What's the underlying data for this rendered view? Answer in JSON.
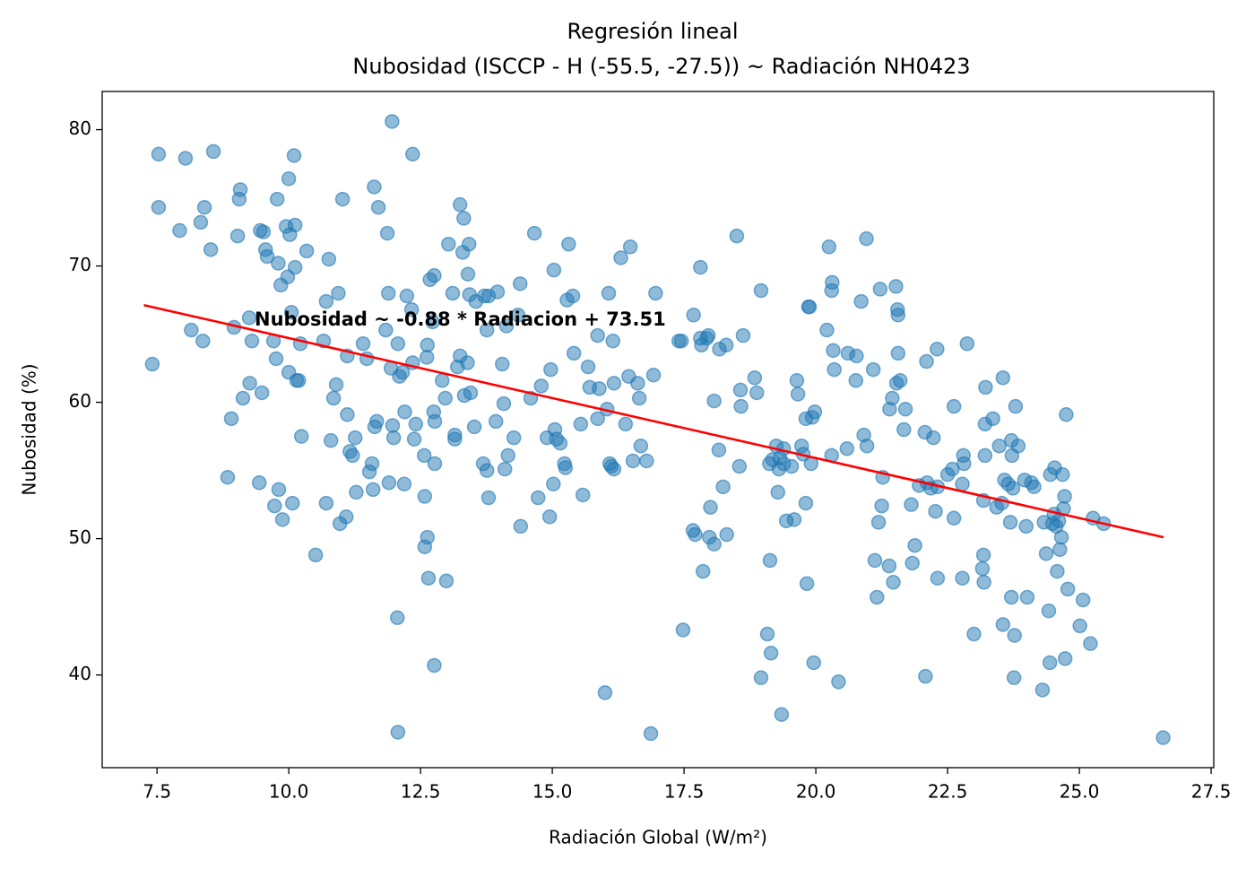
{
  "chart_data": {
    "type": "scatter",
    "title": "Regresión lineal",
    "subtitle": "Nubosidad (ISCCP - H (-55.5, -27.5)) ~ Radiación NH0423",
    "x_label": "Radiación Global (W/m²)",
    "y_label": "Nubosidad (%)",
    "annotation": "Nubosidad ~ -0.88 * Radiacion + 73.51",
    "color": "#1f77b4",
    "xlim": [
      6.46,
      27.55
    ],
    "ylim": [
      33.2,
      82.8
    ],
    "xticks": [
      7.5,
      {
        "value": 10,
        "label": "10.0"
      },
      12.5,
      {
        "value": 15,
        "label": "15.0"
      },
      17.5,
      {
        "value": 20,
        "label": "20.0"
      },
      22.5,
      {
        "value": 25,
        "label": "25.0"
      },
      27.5
    ],
    "yticks": [
      40,
      50,
      60,
      70,
      80
    ],
    "x": [
      7.41,
      7.53,
      7.53,
      8.04,
      7.93,
      8.15,
      8.33,
      8.4,
      8.37,
      8.52,
      8.57,
      8.84,
      8.91,
      8.96,
      9.03,
      9.06,
      9.08,
      9.13,
      9.25,
      9.26,
      9.3,
      9.44,
      9.46,
      9.49,
      9.52,
      9.56,
      9.59,
      9.71,
      9.73,
      9.76,
      9.78,
      9.8,
      9.81,
      9.85,
      9.88,
      9.95,
      9.98,
      10.0,
      10.0,
      10.02,
      10.05,
      10.07,
      10.1,
      10.12,
      10.12,
      10.15,
      10.19,
      10.22,
      10.24,
      10.34,
      10.51,
      10.66,
      10.71,
      10.71,
      10.76,
      10.8,
      10.85,
      10.9,
      10.94,
      10.97,
      11.02,
      11.09,
      11.11,
      11.11,
      11.16,
      11.21,
      11.26,
      11.28,
      11.41,
      11.48,
      11.53,
      11.58,
      11.6,
      11.62,
      11.63,
      11.67,
      11.7,
      11.84,
      11.87,
      11.89,
      11.9,
      11.94,
      11.96,
      11.97,
      11.99,
      12.06,
      12.07,
      12.07,
      12.1,
      12.16,
      12.19,
      12.2,
      12.24,
      12.33,
      12.35,
      12.35,
      12.38,
      12.41,
      12.57,
      12.58,
      12.58,
      12.62,
      12.63,
      12.63,
      12.65,
      12.68,
      12.73,
      12.75,
      12.76,
      12.77,
      12.77,
      12.76,
      12.91,
      12.97,
      12.99,
      13.03,
      13.11,
      13.15,
      13.15,
      13.2,
      13.25,
      13.25,
      13.3,
      13.32,
      13.33,
      13.39,
      13.4,
      13.42,
      13.43,
      13.45,
      13.52,
      13.55,
      13.69,
      13.71,
      13.76,
      13.76,
      13.79,
      13.79,
      13.93,
      13.96,
      14.05,
      14.08,
      14.1,
      14.13,
      14.16,
      14.27,
      14.35,
      14.4,
      14.39,
      14.59,
      14.66,
      14.73,
      14.79,
      14.9,
      14.95,
      14.97,
      15.02,
      15.03,
      15.05,
      15.08,
      15.15,
      15.23,
      15.25,
      15.28,
      15.31,
      15.39,
      15.41,
      15.54,
      15.58,
      15.68,
      15.71,
      15.86,
      15.86,
      15.89,
      16.0,
      16.04,
      16.07,
      16.09,
      16.12,
      16.15,
      16.17,
      16.17,
      16.3,
      16.39,
      16.45,
      16.48,
      16.53,
      16.62,
      16.65,
      16.68,
      16.79,
      16.87,
      16.92,
      16.96,
      17.4,
      17.45,
      17.48,
      17.67,
      17.68,
      17.71,
      17.81,
      17.81,
      17.83,
      17.86,
      17.93,
      17.96,
      17.98,
      18.0,
      18.07,
      18.07,
      18.16,
      18.17,
      18.24,
      18.31,
      18.3,
      18.5,
      18.55,
      18.57,
      18.58,
      18.62,
      18.84,
      18.88,
      18.96,
      18.96,
      19.08,
      19.12,
      19.13,
      19.15,
      19.18,
      19.25,
      19.28,
      19.3,
      19.32,
      19.35,
      19.39,
      19.39,
      19.44,
      19.54,
      19.59,
      19.64,
      19.66,
      19.73,
      19.76,
      19.81,
      19.81,
      19.83,
      19.86,
      19.88,
      19.91,
      19.93,
      19.96,
      19.98,
      20.21,
      20.25,
      20.3,
      20.3,
      20.31,
      20.33,
      20.35,
      20.43,
      20.59,
      20.61,
      20.76,
      20.77,
      20.86,
      20.91,
      20.96,
      20.97,
      21.09,
      21.12,
      21.16,
      21.19,
      21.22,
      21.25,
      21.27,
      21.39,
      21.4,
      21.45,
      21.47,
      21.52,
      21.53,
      21.55,
      21.56,
      21.56,
      21.6,
      21.7,
      21.67,
      21.81,
      21.83,
      21.88,
      21.96,
      22.07,
      22.08,
      22.1,
      22.11,
      22.18,
      22.23,
      22.27,
      22.3,
      22.31,
      22.31,
      22.5,
      22.59,
      22.62,
      22.62,
      22.78,
      22.78,
      22.8,
      22.81,
      22.87,
      23.0,
      23.18,
      23.18,
      23.16,
      23.19,
      23.21,
      23.21,
      23.22,
      23.36,
      23.43,
      23.48,
      23.53,
      23.55,
      23.55,
      23.58,
      23.65,
      23.69,
      23.71,
      23.71,
      23.72,
      23.74,
      23.76,
      23.77,
      23.79,
      23.84,
      23.96,
      23.99,
      24.01,
      24.09,
      24.14,
      24.3,
      24.33,
      24.37,
      24.42,
      24.44,
      24.45,
      24.49,
      24.52,
      24.53,
      24.56,
      24.58,
      24.61,
      24.63,
      24.66,
      24.68,
      24.7,
      24.72,
      24.73,
      24.75,
      24.78,
      25.01,
      25.07,
      25.21,
      25.26,
      25.46,
      26.59
    ],
    "values": [
      62.8,
      78.2,
      74.3,
      77.9,
      72.6,
      65.3,
      73.2,
      74.3,
      64.5,
      71.2,
      78.4,
      54.5,
      58.8,
      65.5,
      72.2,
      74.9,
      75.6,
      60.3,
      66.2,
      61.4,
      64.5,
      54.1,
      72.6,
      60.7,
      72.5,
      71.2,
      70.7,
      64.5,
      52.4,
      63.2,
      74.9,
      70.2,
      53.6,
      68.6,
      51.4,
      72.9,
      69.2,
      62.2,
      76.4,
      72.3,
      66.6,
      52.6,
      78.1,
      69.9,
      73.0,
      61.6,
      61.6,
      64.3,
      57.5,
      71.1,
      48.8,
      64.5,
      52.6,
      67.4,
      70.5,
      57.2,
      60.3,
      61.3,
      68.0,
      51.1,
      74.9,
      51.6,
      63.4,
      59.1,
      56.4,
      56.1,
      57.4,
      53.4,
      64.3,
      63.2,
      54.9,
      55.5,
      53.6,
      75.8,
      58.2,
      58.6,
      74.3,
      65.3,
      72.4,
      68.0,
      54.1,
      62.5,
      80.6,
      58.3,
      57.4,
      44.2,
      35.8,
      64.3,
      61.9,
      62.2,
      54.0,
      59.3,
      67.8,
      66.8,
      78.2,
      62.9,
      57.3,
      58.4,
      56.1,
      53.1,
      49.4,
      63.3,
      50.1,
      64.2,
      47.1,
      69.0,
      65.9,
      59.3,
      69.3,
      58.6,
      55.5,
      40.7,
      61.6,
      60.3,
      46.9,
      71.6,
      68.0,
      57.3,
      57.6,
      62.6,
      74.5,
      63.4,
      71.0,
      73.5,
      60.5,
      62.9,
      69.4,
      71.6,
      67.9,
      60.7,
      58.2,
      67.4,
      55.5,
      67.8,
      55.0,
      65.3,
      53.0,
      67.8,
      58.6,
      68.1,
      62.8,
      59.9,
      55.1,
      65.6,
      56.1,
      57.4,
      66.4,
      50.9,
      68.7,
      60.3,
      72.4,
      53.0,
      61.2,
      57.4,
      51.6,
      62.4,
      54.0,
      69.7,
      58.0,
      57.3,
      57.0,
      55.5,
      55.2,
      67.5,
      71.6,
      67.8,
      63.6,
      58.4,
      53.2,
      62.6,
      61.1,
      64.9,
      58.8,
      61.0,
      38.7,
      59.5,
      68.0,
      55.5,
      55.3,
      64.5,
      55.1,
      61.4,
      70.6,
      58.4,
      61.9,
      71.4,
      55.7,
      61.4,
      60.3,
      56.8,
      55.7,
      35.7,
      62.0,
      68.0,
      64.5,
      64.5,
      43.3,
      50.6,
      66.4,
      50.3,
      69.9,
      64.7,
      64.2,
      47.6,
      64.7,
      64.9,
      50.1,
      52.3,
      49.6,
      60.1,
      56.5,
      63.9,
      53.8,
      50.3,
      64.2,
      72.2,
      55.3,
      60.9,
      59.7,
      64.9,
      61.8,
      60.7,
      68.2,
      39.8,
      43.0,
      55.5,
      48.4,
      41.6,
      55.8,
      56.8,
      53.4,
      55.1,
      55.9,
      37.1,
      56.6,
      55.5,
      51.3,
      55.3,
      51.4,
      61.6,
      60.6,
      56.8,
      56.2,
      58.8,
      52.6,
      46.7,
      67.0,
      67.0,
      55.5,
      58.9,
      40.9,
      59.3,
      65.3,
      71.4,
      56.1,
      68.2,
      68.8,
      63.8,
      62.4,
      39.5,
      56.6,
      63.6,
      61.6,
      63.4,
      67.4,
      57.6,
      72.0,
      56.8,
      62.4,
      48.4,
      45.7,
      51.2,
      68.3,
      52.4,
      54.5,
      48.0,
      59.5,
      60.3,
      46.8,
      68.5,
      61.4,
      66.8,
      66.4,
      63.6,
      61.6,
      59.5,
      58.0,
      52.5,
      48.2,
      49.5,
      53.9,
      57.8,
      39.9,
      63.0,
      54.1,
      53.7,
      57.4,
      52.0,
      63.9,
      53.8,
      47.1,
      54.7,
      55.1,
      59.7,
      51.5,
      47.1,
      54.0,
      56.1,
      55.5,
      64.3,
      43.0,
      52.8,
      48.8,
      47.8,
      46.8,
      56.1,
      58.4,
      61.1,
      58.8,
      52.3,
      56.8,
      52.6,
      43.7,
      61.8,
      54.3,
      54.0,
      51.2,
      57.2,
      45.7,
      56.1,
      53.7,
      39.8,
      42.9,
      59.7,
      56.8,
      54.3,
      50.9,
      45.7,
      54.1,
      53.8,
      38.9,
      51.2,
      48.9,
      44.7,
      40.9,
      54.7,
      51.1,
      51.8,
      55.2,
      50.9,
      47.6,
      51.3,
      49.2,
      50.1,
      54.7,
      52.2,
      53.1,
      41.2,
      59.1,
      46.3,
      43.6,
      45.5,
      42.3,
      51.5,
      51.1,
      35.4
    ],
    "fit_line": {
      "x": [
        7.25,
        26.6
      ],
      "values": [
        67.13,
        50.1
      ],
      "color": "#ff0000"
    }
  }
}
